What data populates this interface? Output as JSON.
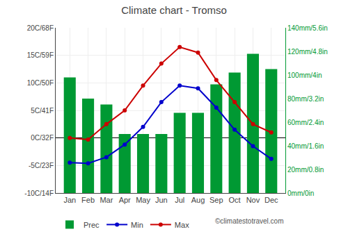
{
  "chart_data": {
    "type": "bar",
    "title": "Climate chart - Tromso",
    "categories": [
      "Jan",
      "Feb",
      "Mar",
      "Apr",
      "May",
      "Jun",
      "Jul",
      "Aug",
      "Sep",
      "Oct",
      "Nov",
      "Dec"
    ],
    "series": [
      {
        "name": "Prec",
        "type": "bar",
        "axis": "y2",
        "color": "#009933",
        "values": [
          98,
          80,
          75,
          50,
          50,
          50,
          68,
          68,
          92,
          102,
          118,
          105
        ]
      },
      {
        "name": "Min",
        "type": "line",
        "marker": "circle",
        "color": "#0000cc",
        "values": [
          -4.5,
          -4.6,
          -3.5,
          -1.2,
          2.0,
          6.5,
          9.5,
          9.0,
          5.5,
          1.5,
          -1.5,
          -3.8
        ]
      },
      {
        "name": "Max",
        "type": "line",
        "marker": "circle",
        "color": "#cc0000",
        "values": [
          0.0,
          -0.3,
          2.5,
          5.0,
          9.5,
          13.5,
          16.5,
          15.5,
          10.5,
          6.5,
          2.5,
          1.0
        ]
      }
    ],
    "ylim": [
      -10,
      20
    ],
    "yticks": [
      {
        "value": -10,
        "label": "-10C/14F"
      },
      {
        "value": -5,
        "label": "-5C/23F"
      },
      {
        "value": 0,
        "label": "0C/32F"
      },
      {
        "value": 5,
        "label": "5C/41F"
      },
      {
        "value": 10,
        "label": "10C/50F"
      },
      {
        "value": 15,
        "label": "15C/59F"
      },
      {
        "value": 20,
        "label": "20C/68F"
      }
    ],
    "y2lim": [
      0,
      140
    ],
    "y2ticks": [
      {
        "value": 0,
        "label": "0mm/0in"
      },
      {
        "value": 20,
        "label": "20mm/0.8in"
      },
      {
        "value": 40,
        "label": "40mm/1.6in"
      },
      {
        "value": 60,
        "label": "60mm/2.4in"
      },
      {
        "value": 80,
        "label": "80mm/3.2in"
      },
      {
        "value": 100,
        "label": "100mm/4in"
      },
      {
        "value": 120,
        "label": "120mm/4.8in"
      },
      {
        "value": 140,
        "label": "140mm/5.6in"
      }
    ],
    "grid": true,
    "legend": "bottom left",
    "annotations": [
      "©climatestotravel.com"
    ]
  }
}
